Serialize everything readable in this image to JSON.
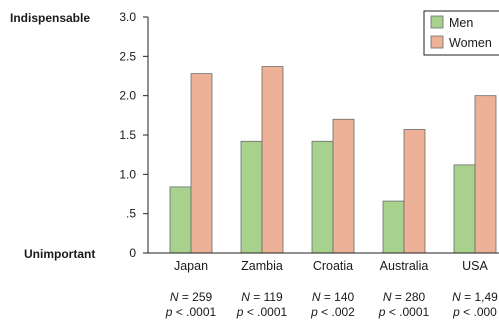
{
  "chart_data": {
    "type": "bar",
    "title": "",
    "xlabel": "",
    "ylabel": "",
    "ylim": [
      0,
      3.0
    ],
    "y_ticks": [
      {
        "value": 0,
        "label": "0"
      },
      {
        "value": 0.5,
        "label": ".5"
      },
      {
        "value": 1.0,
        "label": "1.0"
      },
      {
        "value": 1.5,
        "label": "1.5"
      },
      {
        "value": 2.0,
        "label": "2.0"
      },
      {
        "value": 2.5,
        "label": "2.5"
      },
      {
        "value": 3.0,
        "label": "3.0"
      }
    ],
    "y_anchor_labels": {
      "top": "Indispensable",
      "bottom": "Unimportant"
    },
    "categories": [
      "Japan",
      "Zambia",
      "Croatia",
      "Australia",
      "USA"
    ],
    "series": [
      {
        "name": "Men",
        "color": "#a9d18e",
        "values": [
          0.84,
          1.42,
          1.42,
          0.66,
          1.12
        ]
      },
      {
        "name": "Women",
        "color": "#ecb197",
        "values": [
          2.28,
          2.37,
          1.7,
          1.57,
          2.0
        ]
      }
    ],
    "stats": [
      {
        "n_label": "N",
        "n_value": "= 259",
        "p_label": "p",
        "p_value": "< .0001"
      },
      {
        "n_label": "N",
        "n_value": "= 119",
        "p_label": "p",
        "p_value": "< .0001"
      },
      {
        "n_label": "N",
        "n_value": "= 140",
        "p_label": "p",
        "p_value": "< .002"
      },
      {
        "n_label": "N",
        "n_value": "= 280",
        "p_label": "p",
        "p_value": "< .0001"
      },
      {
        "n_label": "N",
        "n_value": "= 1,49",
        "p_label": "p",
        "p_value": "< .000"
      }
    ],
    "grid": false,
    "legend_position": "top-right",
    "colors": {
      "axis": "#222222",
      "bar_stroke": "#6b6b6b"
    }
  }
}
